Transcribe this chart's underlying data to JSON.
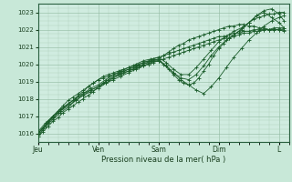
{
  "background_color": "#c8e8d8",
  "plot_bg_color": "#d0ece0",
  "grid_color_major": "#90b8a0",
  "grid_color_minor": "#b0d0bc",
  "line_color": "#1a5c2a",
  "xlabel": "Pression niveau de la mer( hPa )",
  "ylim": [
    1015.5,
    1023.5
  ],
  "yticks": [
    1016,
    1017,
    1018,
    1019,
    1020,
    1021,
    1022,
    1023
  ],
  "x_day_labels": [
    "Jeu",
    "Ven",
    "Sam",
    "Dim",
    "L"
  ],
  "x_day_positions": [
    0,
    24,
    48,
    72,
    96
  ],
  "xlim": [
    0,
    100
  ],
  "series": [
    {
      "x": [
        0,
        2,
        4,
        6,
        8,
        10,
        12,
        14,
        16,
        18,
        20,
        22,
        24,
        26,
        28,
        30,
        32,
        34,
        36,
        38,
        40,
        42,
        44,
        46,
        48,
        50,
        52,
        54,
        56,
        58,
        60,
        62,
        64,
        66,
        68,
        70,
        72,
        74,
        76,
        78,
        80,
        82,
        84,
        86,
        88,
        90,
        92,
        94,
        96,
        98
      ],
      "y": [
        1015.8,
        1016.1,
        1016.4,
        1016.7,
        1016.9,
        1017.2,
        1017.4,
        1017.6,
        1017.8,
        1018.0,
        1018.2,
        1018.4,
        1018.7,
        1018.9,
        1019.1,
        1019.2,
        1019.4,
        1019.5,
        1019.6,
        1019.7,
        1019.8,
        1019.9,
        1020.0,
        1020.1,
        1020.2,
        1020.3,
        1020.4,
        1020.5,
        1020.6,
        1020.7,
        1020.8,
        1020.9,
        1021.0,
        1021.1,
        1021.2,
        1021.3,
        1021.4,
        1021.5,
        1021.5,
        1021.6,
        1021.7,
        1021.8,
        1021.8,
        1021.9,
        1021.9,
        1022.0,
        1022.0,
        1022.1,
        1022.1,
        1022.1
      ]
    },
    {
      "x": [
        0,
        2,
        4,
        6,
        8,
        10,
        12,
        14,
        16,
        18,
        20,
        22,
        24,
        26,
        28,
        30,
        32,
        34,
        36,
        38,
        40,
        42,
        44,
        46,
        48,
        50,
        52,
        54,
        56,
        58,
        60,
        62,
        64,
        66,
        68,
        70,
        72,
        74,
        76,
        78,
        80,
        82,
        84,
        86,
        88,
        90,
        92,
        94,
        96,
        98
      ],
      "y": [
        1015.8,
        1016.2,
        1016.6,
        1017.0,
        1017.3,
        1017.6,
        1017.9,
        1018.1,
        1018.3,
        1018.5,
        1018.7,
        1018.9,
        1019.1,
        1019.2,
        1019.3,
        1019.4,
        1019.5,
        1019.6,
        1019.7,
        1019.8,
        1019.9,
        1020.0,
        1020.1,
        1020.2,
        1020.3,
        1020.5,
        1020.7,
        1020.9,
        1021.1,
        1021.2,
        1021.4,
        1021.5,
        1021.6,
        1021.7,
        1021.8,
        1021.9,
        1022.0,
        1022.1,
        1022.2,
        1022.2,
        1022.3,
        1022.3,
        1022.2,
        1022.2,
        1022.1,
        1022.1,
        1022.0,
        1022.0,
        1022.0,
        1021.9
      ]
    },
    {
      "x": [
        0,
        2,
        4,
        6,
        8,
        10,
        12,
        14,
        16,
        18,
        20,
        22,
        24,
        26,
        28,
        30,
        32,
        34,
        36,
        38,
        40,
        42,
        44,
        46,
        48,
        50,
        52,
        54,
        56,
        58,
        60,
        62,
        64,
        66,
        68,
        70,
        72,
        74,
        76,
        78,
        80,
        82,
        84,
        86,
        88,
        90,
        92,
        94,
        96,
        98
      ],
      "y": [
        1016.0,
        1016.3,
        1016.7,
        1017.0,
        1017.2,
        1017.5,
        1017.7,
        1017.9,
        1018.2,
        1018.4,
        1018.7,
        1018.9,
        1019.1,
        1019.3,
        1019.4,
        1019.5,
        1019.6,
        1019.7,
        1019.8,
        1019.9,
        1020.0,
        1020.1,
        1020.2,
        1020.3,
        1020.4,
        1020.5,
        1020.6,
        1020.7,
        1020.8,
        1020.9,
        1021.0,
        1021.1,
        1021.2,
        1021.3,
        1021.4,
        1021.5,
        1021.6,
        1021.6,
        1021.7,
        1021.8,
        1021.8,
        1021.9,
        1021.9,
        1022.0,
        1022.0,
        1022.0,
        1022.0,
        1022.0,
        1022.0,
        1022.0
      ]
    },
    {
      "x": [
        0,
        3,
        6,
        9,
        12,
        15,
        18,
        21,
        24,
        27,
        30,
        33,
        36,
        39,
        42,
        45,
        48,
        50,
        52,
        54,
        56,
        58,
        60,
        62,
        64,
        66,
        68,
        70,
        72,
        74,
        76,
        78,
        80,
        82,
        84,
        86,
        88,
        90,
        92,
        94,
        96,
        98
      ],
      "y": [
        1016.1,
        1016.6,
        1017.0,
        1017.4,
        1017.7,
        1018.0,
        1018.3,
        1018.5,
        1018.7,
        1018.9,
        1019.1,
        1019.3,
        1019.5,
        1019.7,
        1019.9,
        1020.1,
        1020.2,
        1020.0,
        1019.7,
        1019.4,
        1019.1,
        1018.9,
        1018.8,
        1018.9,
        1019.2,
        1019.6,
        1020.0,
        1020.5,
        1020.9,
        1021.2,
        1021.5,
        1021.7,
        1021.9,
        1022.2,
        1022.4,
        1022.6,
        1022.7,
        1022.8,
        1022.9,
        1022.9,
        1023.0,
        1023.0
      ]
    },
    {
      "x": [
        0,
        3,
        6,
        9,
        12,
        15,
        18,
        21,
        24,
        27,
        30,
        33,
        36,
        39,
        42,
        45,
        48,
        51,
        54,
        57,
        60,
        63,
        66,
        69,
        72,
        75,
        78,
        81,
        84,
        87,
        90,
        93,
        96,
        98
      ],
      "y": [
        1016.0,
        1016.5,
        1016.9,
        1017.3,
        1017.6,
        1017.9,
        1018.2,
        1018.4,
        1018.6,
        1018.9,
        1019.2,
        1019.4,
        1019.6,
        1019.8,
        1020.0,
        1020.2,
        1020.3,
        1019.9,
        1019.5,
        1019.1,
        1018.8,
        1018.5,
        1018.3,
        1018.7,
        1019.2,
        1019.8,
        1020.4,
        1020.9,
        1021.4,
        1021.8,
        1022.2,
        1022.5,
        1022.7,
        1022.8
      ]
    },
    {
      "x": [
        0,
        3,
        6,
        9,
        12,
        15,
        18,
        21,
        24,
        27,
        30,
        33,
        36,
        39,
        42,
        45,
        48,
        51,
        54,
        57,
        60,
        63,
        66,
        69,
        72,
        75,
        78,
        81,
        84,
        87,
        90,
        93,
        96,
        98
      ],
      "y": [
        1015.9,
        1016.4,
        1016.8,
        1017.2,
        1017.5,
        1017.9,
        1018.2,
        1018.5,
        1018.7,
        1019.0,
        1019.3,
        1019.5,
        1019.7,
        1019.9,
        1020.1,
        1020.2,
        1020.2,
        1019.9,
        1019.5,
        1019.2,
        1019.1,
        1019.4,
        1019.9,
        1020.5,
        1021.0,
        1021.4,
        1021.7,
        1022.0,
        1022.4,
        1022.8,
        1023.1,
        1023.2,
        1022.9,
        1022.5
      ]
    },
    {
      "x": [
        0,
        3,
        6,
        9,
        12,
        15,
        18,
        21,
        24,
        27,
        30,
        33,
        36,
        39,
        42,
        45,
        48,
        51,
        54,
        57,
        60,
        63,
        66,
        69,
        72,
        75,
        78,
        81,
        84,
        87,
        90,
        93,
        96,
        98
      ],
      "y": [
        1016.0,
        1016.5,
        1016.9,
        1017.3,
        1017.7,
        1018.0,
        1018.3,
        1018.6,
        1018.8,
        1019.1,
        1019.4,
        1019.6,
        1019.8,
        1020.0,
        1020.2,
        1020.3,
        1020.4,
        1020.1,
        1019.7,
        1019.4,
        1019.4,
        1019.8,
        1020.3,
        1020.8,
        1021.3,
        1021.6,
        1021.9,
        1022.1,
        1022.4,
        1022.8,
        1023.0,
        1022.7,
        1022.4,
        1022.1
      ]
    }
  ]
}
